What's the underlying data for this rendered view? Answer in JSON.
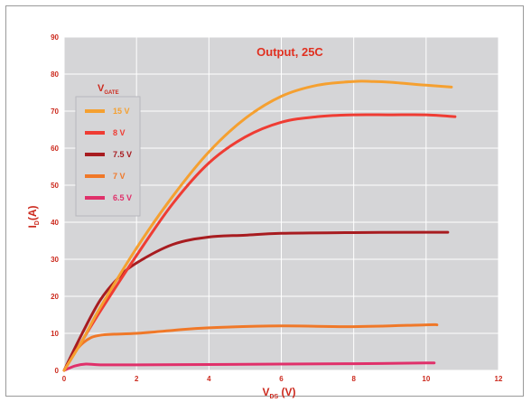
{
  "chart_data": {
    "type": "line",
    "title": "Output, 25C",
    "xlabel": {
      "main": "V",
      "sub": "DS",
      "unit": " (V)"
    },
    "ylabel": {
      "main": "I",
      "sub": "D",
      "unit": "(A)"
    },
    "xlim": [
      0,
      12
    ],
    "ylim": [
      0,
      90
    ],
    "x_ticks": [
      "0",
      "2",
      "4",
      "6",
      "8",
      "10",
      "12"
    ],
    "y_ticks": [
      "0",
      "10",
      "20",
      "30",
      "40",
      "50",
      "60",
      "70",
      "80",
      "90"
    ],
    "grid": true,
    "legend_title": {
      "main": "V",
      "sub": "GATE"
    },
    "legend_position": "top-left",
    "series": [
      {
        "name": "15 V",
        "color": "#f5a030",
        "points": [
          [
            0,
            0
          ],
          [
            0.5,
            8
          ],
          [
            1,
            17
          ],
          [
            2,
            33
          ],
          [
            3,
            47
          ],
          [
            4,
            59
          ],
          [
            5,
            68
          ],
          [
            6,
            74
          ],
          [
            7,
            77
          ],
          [
            8,
            78
          ],
          [
            8.5,
            78
          ],
          [
            9,
            77.8
          ],
          [
            10,
            77
          ],
          [
            10.7,
            76.5
          ]
        ]
      },
      {
        "name": "8 V",
        "color": "#ef3c33",
        "points": [
          [
            0,
            0
          ],
          [
            0.5,
            8
          ],
          [
            1,
            16
          ],
          [
            2,
            31
          ],
          [
            3,
            45
          ],
          [
            4,
            56
          ],
          [
            5,
            63
          ],
          [
            6,
            67
          ],
          [
            7,
            68.5
          ],
          [
            8,
            69
          ],
          [
            9,
            69
          ],
          [
            10,
            69
          ],
          [
            10.8,
            68.5
          ]
        ]
      },
      {
        "name": "7.5 V",
        "color": "#a81c20",
        "points": [
          [
            0,
            0
          ],
          [
            0.5,
            10
          ],
          [
            1,
            19
          ],
          [
            1.5,
            25
          ],
          [
            2,
            29
          ],
          [
            3,
            34
          ],
          [
            4,
            36
          ],
          [
            5,
            36.5
          ],
          [
            6,
            37
          ],
          [
            8,
            37.2
          ],
          [
            10,
            37.3
          ],
          [
            10.6,
            37.3
          ]
        ]
      },
      {
        "name": "7 V",
        "color": "#f07828",
        "points": [
          [
            0,
            0
          ],
          [
            0.3,
            5
          ],
          [
            0.6,
            8
          ],
          [
            1,
            9.5
          ],
          [
            2,
            10
          ],
          [
            3,
            10.8
          ],
          [
            4,
            11.5
          ],
          [
            6,
            12
          ],
          [
            8,
            11.8
          ],
          [
            10,
            12.3
          ],
          [
            10.3,
            12.3
          ]
        ]
      },
      {
        "name": "6.5 V",
        "color": "#e0306a",
        "points": [
          [
            0,
            0
          ],
          [
            0.3,
            1.2
          ],
          [
            0.6,
            1.7
          ],
          [
            1,
            1.5
          ],
          [
            2,
            1.5
          ],
          [
            4,
            1.6
          ],
          [
            6,
            1.7
          ],
          [
            8,
            1.8
          ],
          [
            10,
            2
          ],
          [
            10.2,
            2
          ]
        ]
      }
    ]
  }
}
